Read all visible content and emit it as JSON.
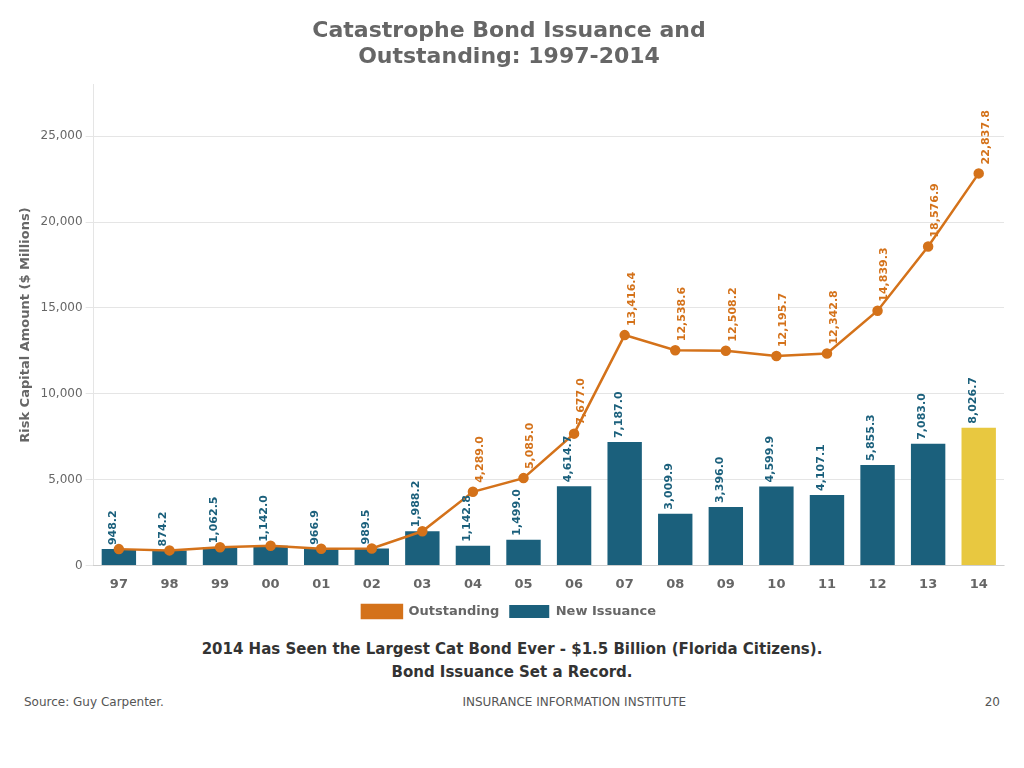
{
  "chart_data": {
    "type": "bar",
    "title": [
      "Catastrophe Bond Issuance and",
      "Outstanding: 1997-2014"
    ],
    "ylabel": "Risk Capital Amount ($ Millions)",
    "categories": [
      "97",
      "98",
      "99",
      "00",
      "01",
      "02",
      "03",
      "04",
      "05",
      "06",
      "07",
      "08",
      "09",
      "10",
      "11",
      "12",
      "13",
      "14"
    ],
    "series": [
      {
        "name": "New Issuance",
        "type": "bar",
        "colors": [
          "#1b607c",
          "#1b607c",
          "#1b607c",
          "#1b607c",
          "#1b607c",
          "#1b607c",
          "#1b607c",
          "#1b607c",
          "#1b607c",
          "#1b607c",
          "#1b607c",
          "#1b607c",
          "#1b607c",
          "#1b607c",
          "#1b607c",
          "#1b607c",
          "#1b607c",
          "#e8c840"
        ],
        "values": [
          948.2,
          874.2,
          1062.5,
          1142.0,
          966.9,
          989.5,
          1988.2,
          1142.8,
          1499.0,
          4614.7,
          7187.0,
          3009.9,
          3396.0,
          4599.9,
          4107.1,
          5855.3,
          7083.0,
          8026.7
        ],
        "value_labels": [
          "948.2",
          "874.2",
          "1,062.5",
          "1,142.0",
          "966.9",
          "989.5",
          "1,988.2",
          "1,142.8",
          "1,499.0",
          "4,614.7",
          "7,187.0",
          "3,009.9",
          "3,396.0",
          "4,599.9",
          "4,107.1",
          "5,855.3",
          "7,083.0",
          "8,026.7"
        ]
      },
      {
        "name": "Outstanding",
        "type": "line",
        "color": "#d4721a",
        "marker": "circle",
        "values": [
          948.2,
          874.2,
          1062.5,
          1142.0,
          966.9,
          989.5,
          1988.2,
          4289.0,
          5085.0,
          7677.0,
          13416.4,
          12538.6,
          12508.2,
          12195.7,
          12342.8,
          14839.3,
          18576.9,
          22837.8
        ],
        "value_labels": [
          null,
          null,
          null,
          null,
          null,
          null,
          null,
          "4,289.0",
          "5,085.0",
          "7,677.0",
          "13,416.4",
          "12,538.6",
          "12,508.2",
          "12,195.7",
          "12,342.8",
          "14,839.3",
          "18,576.9",
          "22,837.8"
        ]
      }
    ],
    "ylim": [
      0,
      28000
    ],
    "yticks": [
      0,
      {
        "value": 5000,
        "label": "5,000"
      },
      {
        "value": 10000,
        "label": "10,000"
      },
      {
        "value": 15000,
        "label": "15,000"
      },
      {
        "value": 20000,
        "label": "20,000"
      },
      {
        "value": 25000,
        "label": "25,000"
      }
    ],
    "grid": true,
    "legend": "bottom",
    "data_labels": true,
    "annotations": [
      "2014 Has Seen the Largest Cat Bond Ever - $1.5 Billion (Florida Citizens).",
      "Bond Issuance Set a Record.",
      "Source: Guy Carpenter.",
      "20",
      "INSURANCE INFORMATION INSTITUTE"
    ]
  }
}
